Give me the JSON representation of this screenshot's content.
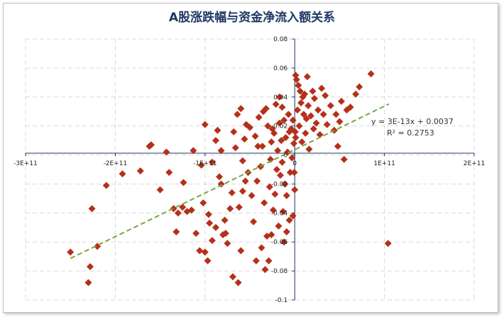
{
  "chart_data": {
    "type": "scatter",
    "title": "A股涨跌幅与资金净流入额关系",
    "xlabel": "",
    "ylabel": "",
    "xlim": [
      -300000000000,
      200000000000
    ],
    "ylim": [
      -0.1,
      0.08
    ],
    "x_ticks": [
      -300000000000,
      -200000000000,
      -100000000000,
      0,
      100000000000,
      200000000000
    ],
    "x_tick_labels": [
      "-3E+11",
      "-2E+11",
      "-1E+11",
      "0",
      "1E+11",
      "2E+11"
    ],
    "y_ticks": [
      -0.1,
      -0.08,
      -0.06,
      -0.04,
      -0.02,
      0,
      0.02,
      0.04,
      0.06,
      0.08
    ],
    "y_tick_labels": [
      "-0.1",
      "-0.08",
      "-0.06",
      "-0.04",
      "-0.02",
      "0",
      "0.02",
      "0.04",
      "0.06",
      "0.08"
    ],
    "grid": true,
    "marker_color": "#b5301a",
    "trendline_color": "#77a840",
    "trendline": {
      "slope": 3e-13,
      "intercept": 0.0037,
      "x_range": [
        -250000000000,
        105000000000
      ],
      "equation": "y = 3E-13x + 0.0037",
      "r2": "R² = 0.2753"
    },
    "series": [
      {
        "points": [
          [
            -250000000000.0,
            -0.067
          ],
          [
            -230000000000.0,
            -0.088
          ],
          [
            -228000000000.0,
            -0.077
          ],
          [
            -220000000000.0,
            -0.063
          ],
          [
            -226000000000.0,
            -0.037
          ],
          [
            -210000000000.0,
            -0.021
          ],
          [
            -192000000000.0,
            -0.013
          ],
          [
            -172000000000.0,
            -0.011
          ],
          [
            -162000000000.0,
            0.006
          ],
          [
            -160000000000.0,
            0.007
          ],
          [
            -143000000000.0,
            0.002
          ],
          [
            -140000000000.0,
            -0.012
          ],
          [
            -135000000000.0,
            -0.037
          ],
          [
            -132000000000.0,
            -0.053
          ],
          [
            -130000000000.0,
            -0.04
          ],
          [
            -125000000000.0,
            -0.036
          ],
          [
            -120000000000.0,
            -0.039
          ],
          [
            -115000000000.0,
            -0.038
          ],
          [
            -110000000000.0,
            -0.054
          ],
          [
            -106000000000.0,
            -0.066
          ],
          [
            -100000000000.0,
            -0.067
          ],
          [
            -97000000000.0,
            -0.073
          ],
          [
            -102000000000.0,
            -0.033
          ],
          [
            -96000000000.0,
            -0.041
          ],
          [
            -95000000000.0,
            -0.047
          ],
          [
            -92000000000.0,
            -0.059
          ],
          [
            -88000000000.0,
            -0.05
          ],
          [
            -100000000000.0,
            0.021
          ],
          [
            -88000000000.0,
            0.01
          ],
          [
            -86000000000.0,
            0.017
          ],
          [
            -84000000000.0,
            -0.015
          ],
          [
            -82000000000.0,
            -0.02
          ],
          [
            -80000000000.0,
            -0.055
          ],
          [
            -77000000000.0,
            -0.054
          ],
          [
            -75000000000.0,
            -0.061
          ],
          [
            -72000000000.0,
            -0.037
          ],
          [
            -70000000000.0,
            -0.026
          ],
          [
            -69000000000.0,
            -0.084
          ],
          [
            -68000000000.0,
            0.016
          ],
          [
            -66000000000.0,
            0.005
          ],
          [
            -64000000000.0,
            0.028
          ],
          [
            -63000000000.0,
            -0.088
          ],
          [
            -62000000000.0,
            -0.036
          ],
          [
            -60000000000.0,
            -0.066
          ],
          [
            -58000000000.0,
            -0.004
          ],
          [
            -56000000000.0,
            0.011
          ],
          [
            -54000000000.0,
            0.021
          ],
          [
            -52000000000.0,
            -0.012
          ],
          [
            -50000000000.0,
            0.019
          ],
          [
            -48000000000.0,
            -0.028
          ],
          [
            -46000000000.0,
            -0.046
          ],
          [
            -44000000000.0,
            0.013
          ],
          [
            -42000000000.0,
            -0.018
          ],
          [
            -40000000000.0,
            0.026
          ],
          [
            -38000000000.0,
            -0.008
          ],
          [
            -36000000000.0,
            0.006
          ],
          [
            -34000000000.0,
            -0.033
          ],
          [
            -33000000000.0,
            -0.079
          ],
          [
            -32000000000.0,
            0.032
          ],
          [
            -31000000000.0,
            -0.056
          ],
          [
            -30000000000.0,
            0.02
          ],
          [
            -29000000000.0,
            -0.073
          ],
          [
            -28000000000.0,
            -0.022
          ],
          [
            -27000000000.0,
            -0.003
          ],
          [
            -26000000000.0,
            0.009
          ],
          [
            -25000000000.0,
            0.018
          ],
          [
            -24000000000.0,
            -0.038
          ],
          [
            -23000000000.0,
            0.015
          ],
          [
            -22000000000.0,
            -0.027
          ],
          [
            -21000000000.0,
            0.035
          ],
          [
            -20000000000.0,
            -0.01
          ],
          [
            -19000000000.0,
            0.003
          ],
          [
            -18000000000.0,
            -0.049
          ],
          [
            -17000000000.0,
            0.022
          ],
          [
            -16000000000.0,
            -0.014
          ],
          [
            -15000000000.0,
            0.01
          ],
          [
            -14000000000.0,
            -0.005
          ],
          [
            -13000000000.0,
            -0.039
          ],
          [
            -12000000000.0,
            0.024
          ],
          [
            -11000000000.0,
            -0.02
          ],
          [
            -10000000000.0,
            0.012
          ],
          [
            -9000000000.0,
            -0.028
          ],
          [
            -8000000000.0,
            0.002
          ],
          [
            -7000000000.0,
            0.028
          ],
          [
            -6000000000.0,
            -0.045
          ],
          [
            -5000000000.0,
            -0.012
          ],
          [
            -4000000000.0,
            0.018
          ],
          [
            -3000000000.0,
            -0.002
          ],
          [
            -2000000000.0,
            -0.042
          ],
          [
            -1000000000.0,
            0.008
          ],
          [
            0,
            -0.024
          ],
          [
            1000000000.0,
            0.012
          ],
          [
            1000000000.0,
            0.055
          ],
          [
            2000000000.0,
            0.052
          ],
          [
            3000000000.0,
            0.031
          ],
          [
            4000000000.0,
            0.048
          ],
          [
            5000000000.0,
            0.02
          ],
          [
            6000000000.0,
            0.044
          ],
          [
            7000000000.0,
            0.036
          ],
          [
            8000000000.0,
            0.009
          ],
          [
            9000000000.0,
            0.04
          ],
          [
            10000000000.0,
            0.028
          ],
          [
            11000000000.0,
            0.042
          ],
          [
            12000000000.0,
            0.015
          ],
          [
            13000000000.0,
            0.025
          ],
          [
            14000000000.0,
            0.054
          ],
          [
            15000000000.0,
            0.034
          ],
          [
            16000000000.0,
            0.004
          ],
          [
            18000000000.0,
            0.027
          ],
          [
            20000000000.0,
            0.044
          ],
          [
            21000000000.0,
            0.018
          ],
          [
            22000000000.0,
            0.039
          ],
          [
            24000000000.0,
            0.022
          ],
          [
            26000000000.0,
            0.031
          ],
          [
            28000000000.0,
            0.014
          ],
          [
            30000000000.0,
            0.046
          ],
          [
            32000000000.0,
            0.028
          ],
          [
            34000000000.0,
            0.041
          ],
          [
            36000000000.0,
            0.021
          ],
          [
            40000000000.0,
            0.034
          ],
          [
            44000000000.0,
            0.017
          ],
          [
            46000000000.0,
            0.028
          ],
          [
            48000000000.0,
            0.006
          ],
          [
            50000000000.0,
            0.023
          ],
          [
            52000000000.0,
            0.037
          ],
          [
            55000000000.0,
            -0.003
          ],
          [
            58000000000.0,
            0.031
          ],
          [
            62000000000.0,
            0.033
          ],
          [
            68000000000.0,
            0.042
          ],
          [
            72000000000.0,
            0.047
          ],
          [
            85000000000.0,
            0.056
          ],
          [
            104000000000.0,
            -0.061
          ],
          [
            -43000000000.0,
            -0.073
          ],
          [
            -37000000000.0,
            -0.064
          ],
          [
            -26000000000.0,
            -0.055
          ],
          [
            -9000000000.0,
            -0.053
          ],
          [
            -12000000000.0,
            -0.06
          ],
          [
            -58000000000.0,
            -0.025
          ],
          [
            -82000000000.0,
            0.003
          ],
          [
            -92000000000.0,
            -0.005
          ],
          [
            -104000000000.0,
            -0.007
          ],
          [
            -124000000000.0,
            -0.019
          ],
          [
            -150000000000.0,
            -0.024
          ],
          [
            -113000000000.0,
            0.003
          ],
          [
            -78000000000.0,
            -0.045
          ],
          [
            -60000000000.0,
            0.032
          ],
          [
            -55000000000.0,
            -0.018
          ],
          [
            -41000000000.0,
            0.006
          ],
          [
            -35000000000.0,
            0.03
          ],
          [
            -17000000000.0,
            0.04
          ],
          [
            -14000000000.0,
            0.033
          ],
          [
            -6000000000.0,
            0.016
          ],
          [
            -2000000000.0,
            0.024
          ],
          [
            -500000000.0,
            -0.012
          ],
          [
            500000000.0,
            0.016
          ]
        ]
      }
    ]
  }
}
